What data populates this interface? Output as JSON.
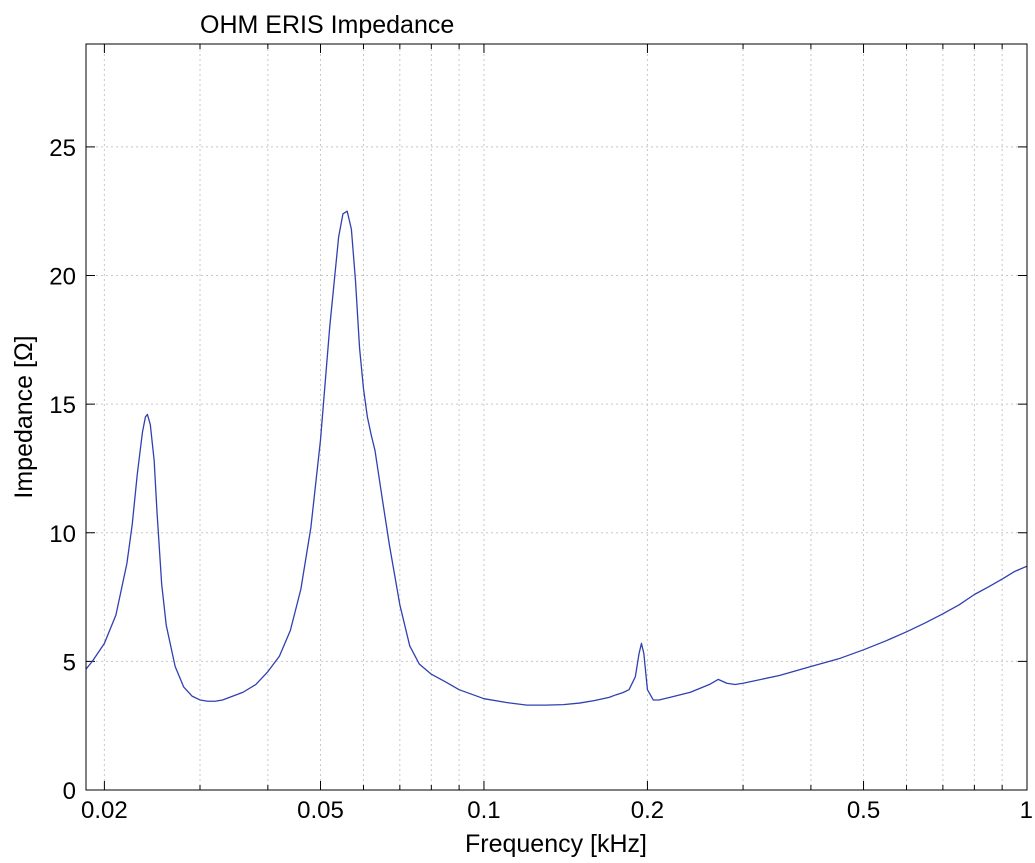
{
  "chart_data": {
    "type": "line",
    "title": "OHM ERIS Impedance",
    "xlabel": "Frequency [kHz]",
    "ylabel": "Impedance [Ω]",
    "x_scale": "log",
    "xlim": [
      0.0185,
      1.0
    ],
    "ylim": [
      0,
      29
    ],
    "grid": true,
    "x_ticks": [
      0.02,
      0.05,
      0.1,
      0.2,
      0.5,
      1
    ],
    "x_tick_labels": [
      "0.02",
      "0.05",
      "0.1",
      "0.2",
      "0.5",
      "1"
    ],
    "x_minor_ticks": [
      0.03,
      0.04,
      0.06,
      0.07,
      0.08,
      0.09,
      0.3,
      0.4,
      0.6,
      0.7,
      0.8,
      0.9
    ],
    "y_ticks": [
      0,
      5,
      10,
      15,
      20,
      25
    ],
    "y_tick_labels": [
      "0",
      "5",
      "10",
      "15",
      "20",
      "25"
    ],
    "line_color": "#3040b0",
    "series": [
      {
        "x": [
          0.0185,
          0.019,
          0.02,
          0.021,
          0.022,
          0.0225,
          0.023,
          0.0235,
          0.0238,
          0.024,
          0.0243,
          0.0247,
          0.025,
          0.0255,
          0.026,
          0.027,
          0.028,
          0.029,
          0.03,
          0.031,
          0.032,
          0.033,
          0.034,
          0.036,
          0.038,
          0.04,
          0.042,
          0.044,
          0.046,
          0.048,
          0.05,
          0.052,
          0.054,
          0.055,
          0.056,
          0.057,
          0.058,
          0.059,
          0.06,
          0.061,
          0.062,
          0.063,
          0.065,
          0.067,
          0.07,
          0.073,
          0.076,
          0.08,
          0.085,
          0.09,
          0.1,
          0.11,
          0.12,
          0.13,
          0.14,
          0.15,
          0.16,
          0.17,
          0.175,
          0.18,
          0.185,
          0.19,
          0.193,
          0.195,
          0.197,
          0.2,
          0.205,
          0.21,
          0.22,
          0.24,
          0.26,
          0.27,
          0.28,
          0.29,
          0.3,
          0.35,
          0.4,
          0.45,
          0.5,
          0.55,
          0.6,
          0.65,
          0.7,
          0.75,
          0.8,
          0.85,
          0.9,
          0.95,
          1.0
        ],
        "y": [
          4.7,
          5.0,
          5.7,
          6.8,
          8.8,
          10.3,
          12.3,
          13.9,
          14.5,
          14.6,
          14.2,
          12.8,
          10.8,
          8.0,
          6.4,
          4.8,
          4.0,
          3.65,
          3.5,
          3.45,
          3.45,
          3.5,
          3.6,
          3.8,
          4.1,
          4.6,
          5.2,
          6.2,
          7.8,
          10.2,
          13.6,
          18.0,
          21.5,
          22.4,
          22.5,
          21.8,
          19.8,
          17.2,
          15.6,
          14.5,
          13.8,
          13.2,
          11.3,
          9.5,
          7.2,
          5.6,
          4.9,
          4.5,
          4.2,
          3.9,
          3.55,
          3.4,
          3.3,
          3.3,
          3.32,
          3.38,
          3.48,
          3.6,
          3.7,
          3.78,
          3.9,
          4.4,
          5.3,
          5.7,
          5.3,
          3.9,
          3.5,
          3.5,
          3.6,
          3.8,
          4.1,
          4.3,
          4.15,
          4.1,
          4.15,
          4.45,
          4.8,
          5.1,
          5.45,
          5.8,
          6.15,
          6.5,
          6.85,
          7.2,
          7.6,
          7.9,
          8.2,
          8.5,
          8.7
        ]
      }
    ]
  }
}
